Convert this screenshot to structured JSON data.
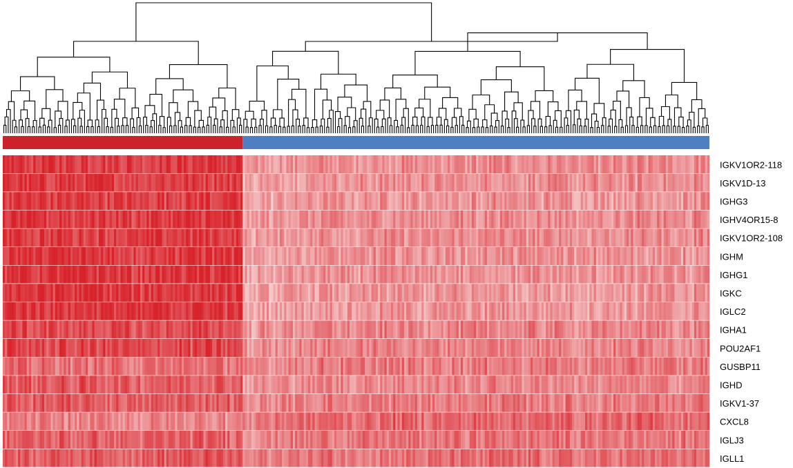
{
  "chart_data": {
    "type": "heatmap",
    "title": "",
    "xlabel": "",
    "ylabel": "",
    "legend": "none",
    "colors": {
      "low": "#fbe9e9",
      "high": "#d8232a",
      "group_1": "#cc2229",
      "group_2": "#4f7fc0",
      "dendrogram": "#000000",
      "separator": "#ffffff"
    },
    "value_range": [
      0,
      1
    ],
    "samples": {
      "count": 324,
      "groups": [
        {
          "label": "",
          "color": "#cc2229",
          "count": 110
        },
        {
          "label": "",
          "color": "#4f7fc0",
          "count": 214
        }
      ]
    },
    "genes": [
      {
        "name": "IGKV1OR2-118",
        "group_1_level": 0.88,
        "group_2_level": 0.46
      },
      {
        "name": "IGKV1D-13",
        "group_1_level": 0.87,
        "group_2_level": 0.45
      },
      {
        "name": "IGHG3",
        "group_1_level": 0.86,
        "group_2_level": 0.43
      },
      {
        "name": "IGHV4OR15-8",
        "group_1_level": 0.88,
        "group_2_level": 0.47
      },
      {
        "name": "IGKV1OR2-108",
        "group_1_level": 0.87,
        "group_2_level": 0.46
      },
      {
        "name": "IGHM",
        "group_1_level": 0.89,
        "group_2_level": 0.44
      },
      {
        "name": "IGHG1",
        "group_1_level": 0.9,
        "group_2_level": 0.43
      },
      {
        "name": "IGKC",
        "group_1_level": 0.9,
        "group_2_level": 0.41
      },
      {
        "name": "IGLC2",
        "group_1_level": 0.9,
        "group_2_level": 0.42
      },
      {
        "name": "IGHA1",
        "group_1_level": 0.78,
        "group_2_level": 0.5
      },
      {
        "name": "POU2AF1",
        "group_1_level": 0.8,
        "group_2_level": 0.52
      },
      {
        "name": "GUSBP11",
        "group_1_level": 0.6,
        "group_2_level": 0.55
      },
      {
        "name": "IGHD",
        "group_1_level": 0.72,
        "group_2_level": 0.5
      },
      {
        "name": "IGKV1-37",
        "group_1_level": 0.7,
        "group_2_level": 0.55
      },
      {
        "name": "CXCL8",
        "group_1_level": 0.5,
        "group_2_level": 0.65
      },
      {
        "name": "IGLJ3",
        "group_1_level": 0.68,
        "group_2_level": 0.58
      },
      {
        "name": "IGLL1",
        "group_1_level": 0.72,
        "group_2_level": 0.6
      }
    ]
  }
}
